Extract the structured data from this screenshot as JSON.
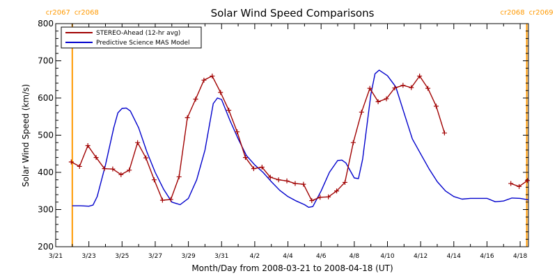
{
  "chart_data": {
    "type": "line",
    "title": "Solar Wind Speed Comparisons",
    "xlabel": "Month/Day from 2008-03-21 to 2008-04-18 (UT)",
    "ylabel": "Solar Wind Speed (km/s)",
    "xlim": [
      "2008-03-21",
      "2008-04-18 12:00"
    ],
    "ylim": [
      200,
      800
    ],
    "y_ticks": [
      200,
      300,
      400,
      500,
      600,
      700,
      800
    ],
    "x_ticks": [
      {
        "label": "3/21",
        "date": "2008-03-21"
      },
      {
        "label": "3/23",
        "date": "2008-03-23"
      },
      {
        "label": "3/25",
        "date": "2008-03-25"
      },
      {
        "label": "3/27",
        "date": "2008-03-27"
      },
      {
        "label": "3/29",
        "date": "2008-03-29"
      },
      {
        "label": "3/31",
        "date": "2008-03-31"
      },
      {
        "label": "4/2",
        "date": "2008-04-02"
      },
      {
        "label": "4/4",
        "date": "2008-04-04"
      },
      {
        "label": "4/6",
        "date": "2008-04-06"
      },
      {
        "label": "4/8",
        "date": "2008-04-08"
      },
      {
        "label": "4/10",
        "date": "2008-04-10"
      },
      {
        "label": "4/12",
        "date": "2008-04-12"
      },
      {
        "label": "4/14",
        "date": "2008-04-14"
      },
      {
        "label": "4/16",
        "date": "2008-04-16"
      },
      {
        "label": "4/18",
        "date": "2008-04-18"
      }
    ],
    "grid": false,
    "legend_position": "top-left",
    "rotation_markers": [
      {
        "date": "2008-03-22",
        "left_label": "cr2067",
        "right_label": "cr2068",
        "color": "#ff9900"
      },
      {
        "date": "2008-04-18 09:36",
        "left_label": "cr2068",
        "right_label": "cr2069",
        "color": "#ff9900"
      }
    ],
    "series": [
      {
        "name": "STEREO-Ahead (12-hr avg)",
        "color": "#a00000",
        "marker": "plus",
        "segments": [
          [
            [
              "2008-03-21 22:30",
              428
            ],
            [
              "2008-03-22 10:30",
              416
            ],
            [
              "2008-03-22 22:30",
              472
            ],
            [
              "2008-03-23 10:30",
              440
            ],
            [
              "2008-03-23 22:30",
              410
            ],
            [
              "2008-03-24 10:30",
              409
            ],
            [
              "2008-03-24 22:30",
              394
            ],
            [
              "2008-03-25 10:30",
              406
            ],
            [
              "2008-03-25 22:30",
              480
            ],
            [
              "2008-03-26 10:30",
              439
            ],
            [
              "2008-03-26 22:30",
              380
            ],
            [
              "2008-03-27 10:30",
              325
            ],
            [
              "2008-03-27 22:30",
              327
            ],
            [
              "2008-03-28 10:30",
              388
            ],
            [
              "2008-03-28 22:30",
              547
            ],
            [
              "2008-03-29 10:30",
              597
            ],
            [
              "2008-03-29 22:30",
              648
            ],
            [
              "2008-03-30 10:30",
              659
            ],
            [
              "2008-03-30 22:30",
              615
            ],
            [
              "2008-03-31 10:30",
              567
            ],
            [
              "2008-03-31 22:30",
              509
            ],
            [
              "2008-04-01 10:30",
              440
            ],
            [
              "2008-04-01 22:30",
              410
            ],
            [
              "2008-04-02 10:30",
              414
            ],
            [
              "2008-04-02 22:30",
              387
            ],
            [
              "2008-04-03 10:30",
              380
            ],
            [
              "2008-04-03 22:30",
              377
            ],
            [
              "2008-04-04 10:30",
              370
            ],
            [
              "2008-04-04 22:30",
              368
            ],
            [
              "2008-04-05 10:30",
              324
            ],
            [
              "2008-04-05 22:30",
              333
            ],
            [
              "2008-04-06 10:30",
              334
            ],
            [
              "2008-04-06 22:30",
              350
            ],
            [
              "2008-04-07 10:30",
              373
            ],
            [
              "2008-04-07 22:30",
              480
            ],
            [
              "2008-04-08 10:30",
              562
            ],
            [
              "2008-04-08 22:30",
              626
            ],
            [
              "2008-04-09 10:30",
              590
            ],
            [
              "2008-04-09 22:30",
              598
            ],
            [
              "2008-04-10 10:30",
              627
            ],
            [
              "2008-04-10 22:30",
              634
            ],
            [
              "2008-04-11 10:30",
              628
            ],
            [
              "2008-04-11 22:30",
              659
            ],
            [
              "2008-04-12 10:30",
              626
            ],
            [
              "2008-04-12 22:30",
              578
            ],
            [
              "2008-04-13 10:30",
              506
            ]
          ],
          [
            [
              "2008-04-17 10:30",
              370
            ],
            [
              "2008-04-17 22:30",
              362
            ],
            [
              "2008-04-18 10:30",
              378
            ]
          ]
        ]
      },
      {
        "name": "Predictive Science MAS Model",
        "color": "#0000cc",
        "marker": "none",
        "segments": [
          [
            [
              "2008-03-22",
              310
            ],
            [
              "2008-03-22 12:00",
              310
            ],
            [
              "2008-03-23",
              309
            ],
            [
              "2008-03-23 06:00",
              312
            ],
            [
              "2008-03-23 12:00",
              335
            ],
            [
              "2008-03-24",
              420
            ],
            [
              "2008-03-24 12:00",
              520
            ],
            [
              "2008-03-24 18:00",
              560
            ],
            [
              "2008-03-25",
              572
            ],
            [
              "2008-03-25 06:00",
              573
            ],
            [
              "2008-03-25 12:00",
              565
            ],
            [
              "2008-03-26",
              520
            ],
            [
              "2008-03-26 12:00",
              455
            ],
            [
              "2008-03-27",
              400
            ],
            [
              "2008-03-27 12:00",
              355
            ],
            [
              "2008-03-28",
              320
            ],
            [
              "2008-03-28 12:00",
              313
            ],
            [
              "2008-03-29",
              330
            ],
            [
              "2008-03-29 12:00",
              380
            ],
            [
              "2008-03-30",
              460
            ],
            [
              "2008-03-30 12:00",
              585
            ],
            [
              "2008-03-30 18:00",
              600
            ],
            [
              "2008-03-31",
              596
            ],
            [
              "2008-03-31 12:00",
              540
            ],
            [
              "2008-04-01",
              490
            ],
            [
              "2008-04-01 12:00",
              445
            ],
            [
              "2008-04-02",
              420
            ],
            [
              "2008-04-02 12:00",
              400
            ],
            [
              "2008-04-03",
              375
            ],
            [
              "2008-04-03 12:00",
              352
            ],
            [
              "2008-04-04",
              335
            ],
            [
              "2008-04-04 12:00",
              323
            ],
            [
              "2008-04-05",
              313
            ],
            [
              "2008-04-05 06:00",
              306
            ],
            [
              "2008-04-05 12:00",
              308
            ],
            [
              "2008-04-06",
              350
            ],
            [
              "2008-04-06 12:00",
              400
            ],
            [
              "2008-04-07",
              432
            ],
            [
              "2008-04-07 06:00",
              433
            ],
            [
              "2008-04-07 12:00",
              425
            ],
            [
              "2008-04-08",
              385
            ],
            [
              "2008-04-08 06:00",
              383
            ],
            [
              "2008-04-08 12:00",
              435
            ],
            [
              "2008-04-09",
              610
            ],
            [
              "2008-04-09 06:00",
              665
            ],
            [
              "2008-04-09 12:00",
              675
            ],
            [
              "2008-04-10",
              660
            ],
            [
              "2008-04-10 12:00",
              630
            ],
            [
              "2008-04-11",
              560
            ],
            [
              "2008-04-11 12:00",
              490
            ],
            [
              "2008-04-12",
              450
            ],
            [
              "2008-04-12 12:00",
              410
            ],
            [
              "2008-04-13",
              375
            ],
            [
              "2008-04-13 12:00",
              350
            ],
            [
              "2008-04-14",
              335
            ],
            [
              "2008-04-14 12:00",
              328
            ],
            [
              "2008-04-15",
              330
            ],
            [
              "2008-04-15 12:00",
              330
            ],
            [
              "2008-04-16",
              330
            ],
            [
              "2008-04-16 12:00",
              321
            ],
            [
              "2008-04-17",
              323
            ],
            [
              "2008-04-17 12:00",
              331
            ],
            [
              "2008-04-18",
              330
            ],
            [
              "2008-04-18 12:00",
              326
            ]
          ]
        ]
      }
    ]
  }
}
